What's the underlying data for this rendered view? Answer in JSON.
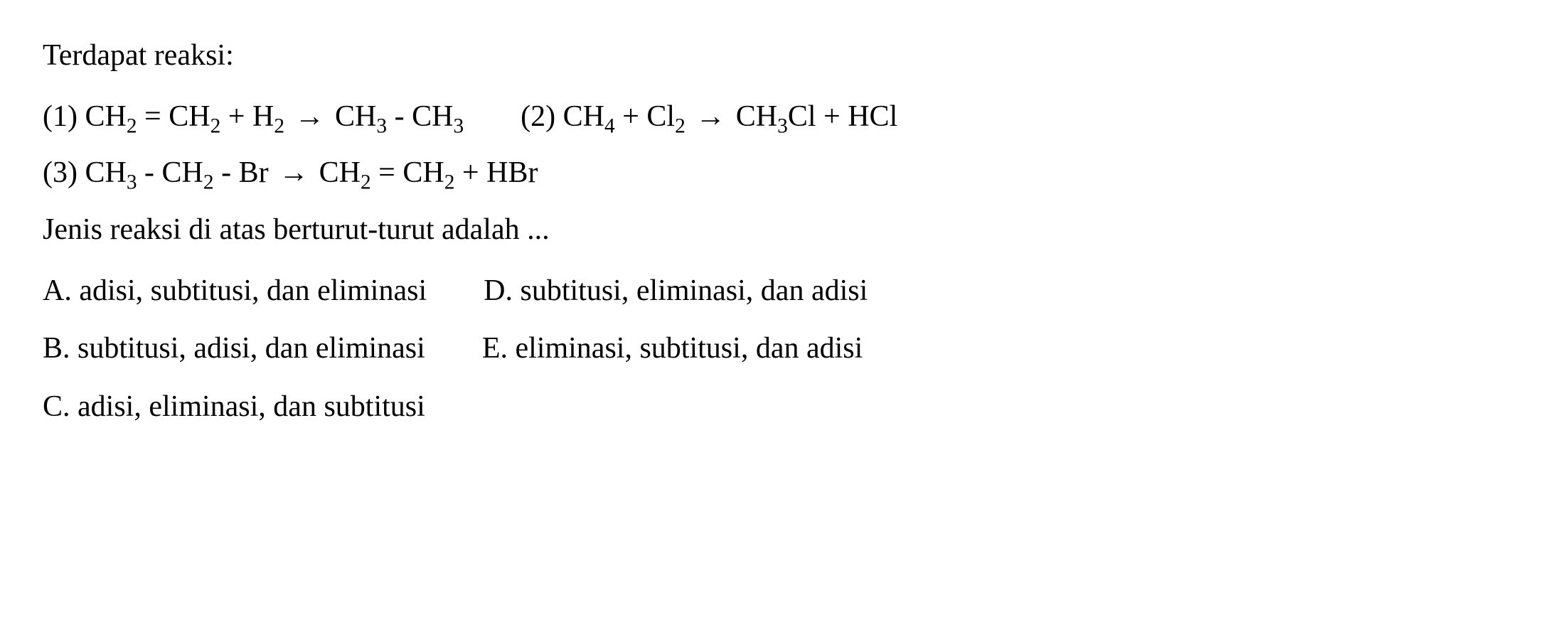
{
  "heading": "Terdapat reaksi:",
  "equations": {
    "eq1_num": "(1)",
    "eq1_lhs1": "CH",
    "eq1_lhs1_sub": "2",
    "eq1_op1": " = ",
    "eq1_lhs2": "CH",
    "eq1_lhs2_sub": "2",
    "eq1_op2": " + ",
    "eq1_lhs3": "H",
    "eq1_lhs3_sub": "2",
    "eq1_arrow": "→",
    "eq1_rhs1": "CH",
    "eq1_rhs1_sub": "3",
    "eq1_op3": " - ",
    "eq1_rhs2": "CH",
    "eq1_rhs2_sub": "3",
    "eq2_num": "(2)",
    "eq2_lhs1": "CH",
    "eq2_lhs1_sub": "4",
    "eq2_op1": " + ",
    "eq2_lhs2": "Cl",
    "eq2_lhs2_sub": "2",
    "eq2_arrow": "→",
    "eq2_rhs1": "CH",
    "eq2_rhs1_sub": "3",
    "eq2_rhs1b": "Cl",
    "eq2_op2": " + ",
    "eq2_rhs2": "HCl",
    "eq3_num": "(3)",
    "eq3_lhs1": "CH",
    "eq3_lhs1_sub": "3",
    "eq3_op1": " - ",
    "eq3_lhs2": "CH",
    "eq3_lhs2_sub": "2",
    "eq3_op2": " - ",
    "eq3_lhs3": "Br",
    "eq3_arrow": "→",
    "eq3_rhs1": "CH",
    "eq3_rhs1_sub": "2",
    "eq3_op3": " = ",
    "eq3_rhs2": "CH",
    "eq3_rhs2_sub": "2",
    "eq3_op4": " + ",
    "eq3_rhs3": "HBr"
  },
  "question": "Jenis reaksi di atas berturut-turut adalah ...",
  "options": {
    "a": "A. adisi, subtitusi, dan eliminasi",
    "b": "B. subtitusi, adisi, dan eliminasi",
    "c": "C. adisi, eliminasi, dan subtitusi",
    "d": "D. subtitusi, eliminasi, dan adisi",
    "e": "E. eliminasi, subtitusi, dan adisi"
  }
}
